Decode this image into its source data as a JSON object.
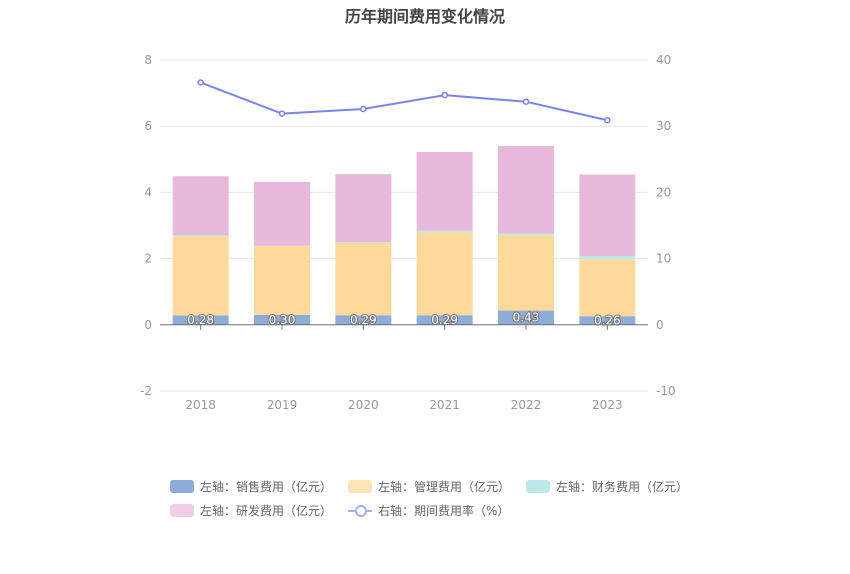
{
  "title": "历年期间费用变化情况",
  "colors": {
    "sales": "#8eacd8",
    "admin": "#ffd999",
    "finance": "#bfe8ea",
    "rnd": "#e8b9da",
    "rate": "#7b83eb",
    "axis_text": "#999999",
    "grid": "#e6e6e6"
  },
  "chart_data": {
    "type": "bar",
    "stacked": true,
    "categories": [
      "2018",
      "2019",
      "2020",
      "2021",
      "2022",
      "2023"
    ],
    "left_axis": {
      "min": -2,
      "max": 8,
      "ticks": [
        "-2",
        "0",
        "2",
        "4",
        "6",
        "8"
      ]
    },
    "right_axis": {
      "min": -10,
      "max": 40,
      "ticks": [
        "-10",
        "0",
        "10",
        "20",
        "30",
        "40"
      ]
    },
    "series": [
      {
        "name": "左轴：销售费用（亿元）",
        "key": "sales",
        "axis": "left",
        "values": [
          0.28,
          0.3,
          0.29,
          0.29,
          0.43,
          0.26
        ],
        "labels": [
          "0.28",
          "0.30",
          "0.29",
          "0.29",
          "0.43",
          "0.26"
        ]
      },
      {
        "name": "左轴：管理费用（亿元）",
        "key": "admin",
        "axis": "left",
        "values": [
          2.4,
          2.08,
          2.19,
          2.5,
          2.28,
          1.72
        ]
      },
      {
        "name": "左轴：财务费用（亿元）",
        "key": "finance",
        "axis": "left",
        "values": [
          0.03,
          0.01,
          0.02,
          0.06,
          0.05,
          0.1
        ]
      },
      {
        "name": "左轴：研发费用（亿元）",
        "key": "rnd",
        "axis": "left",
        "values": [
          1.78,
          1.93,
          2.05,
          2.37,
          2.64,
          2.46
        ]
      },
      {
        "name": "右轴：期间费用率（%）",
        "key": "rate",
        "axis": "right",
        "type": "line",
        "values": [
          36.6,
          31.9,
          32.6,
          34.7,
          33.7,
          30.9
        ]
      }
    ],
    "legend_position": "bottom",
    "grid": true
  }
}
